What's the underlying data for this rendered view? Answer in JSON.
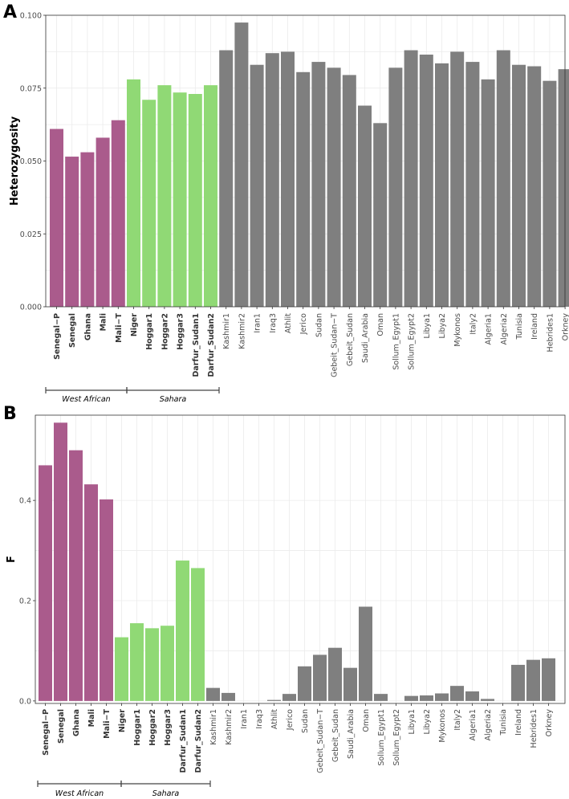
{
  "colors": {
    "west_african": "#aa5b8c",
    "sahara": "#90d975",
    "other": "#7f7f7f",
    "grid": "#ebebeb"
  },
  "chart_data": [
    {
      "type": "bar",
      "panel_letter": "A",
      "title": "",
      "xlabel": "",
      "ylabel": "Heterozygosity",
      "ylim": [
        0,
        0.1
      ],
      "yticks": [
        0,
        0.025,
        0.05,
        0.075,
        0.1
      ],
      "ytick_labels": [
        "0.000",
        "0.025",
        "0.050",
        "0.075",
        "0.100"
      ],
      "grid": true,
      "categories": [
        "Senegal−P",
        "Senegal",
        "Ghana",
        "Mali",
        "Mali−T",
        "Niger",
        "Hoggar1",
        "Hoggar2",
        "Hoggar3",
        "Darfur_Sudan1",
        "Darfur_Sudan2",
        "Kashmir1",
        "Kashmir2",
        "Iran1",
        "Iraq3",
        "Athlit",
        "Jerico",
        "Sudan",
        "Gebeit_Sudan−T",
        "Gebeit_Sudan",
        "Saudi_Arabia",
        "Oman",
        "Sollum_Egypt1",
        "Sollum_Egypt2",
        "Libya1",
        "Libya2",
        "Mykonos",
        "Italy2",
        "Algeria1",
        "Algeria2",
        "Tunisia",
        "Ireland",
        "Hebrides1",
        "Orkney"
      ],
      "values": [
        0.061,
        0.0515,
        0.053,
        0.058,
        0.064,
        0.078,
        0.071,
        0.076,
        0.0735,
        0.073,
        0.076,
        0.088,
        0.0975,
        0.083,
        0.087,
        0.0875,
        0.0805,
        0.084,
        0.082,
        0.0795,
        0.069,
        0.063,
        0.082,
        0.088,
        0.0865,
        0.0835,
        0.0875,
        0.084,
        0.078,
        0.088,
        0.083,
        0.0825,
        0.0775,
        0.0815
      ],
      "groups": [
        {
          "name": "West African",
          "start": 0,
          "end": 4,
          "color_key": "west_african"
        },
        {
          "name": "Sahara",
          "start": 5,
          "end": 10,
          "color_key": "sahara"
        },
        {
          "name": "",
          "start": 11,
          "end": 33,
          "color_key": "other"
        }
      ]
    },
    {
      "type": "bar",
      "panel_letter": "B",
      "title": "",
      "xlabel": "",
      "ylabel": "F",
      "ylim": [
        -0.005,
        0.57
      ],
      "yticks": [
        0,
        0.2,
        0.4
      ],
      "ytick_labels": [
        "0.0",
        "0.2",
        "0.4"
      ],
      "grid": true,
      "categories": [
        "Senegal−P",
        "Senegal",
        "Ghana",
        "Mali",
        "Mali−T",
        "Niger",
        "Hoggar1",
        "Hoggar2",
        "Hoggar3",
        "Darfur_Sudan1",
        "Darfur_Sudan2",
        "Kashmir1",
        "Kashmir2",
        "Iran1",
        "Iraq3",
        "Athlit",
        "Jerico",
        "Sudan",
        "Gebeit_Sudan−T",
        "Gebeit_Sudan",
        "Saudi_Arabia",
        "Oman",
        "Sollum_Egypt1",
        "Sollum_Egypt2",
        "Libya1",
        "Libya2",
        "Mykonos",
        "Italy2",
        "Algeria1",
        "Algeria2",
        "Tunisia",
        "Ireland",
        "Hebrides1",
        "Orkney"
      ],
      "values": [
        0.47,
        0.555,
        0.5,
        0.432,
        0.402,
        0.127,
        0.155,
        0.145,
        0.15,
        0.28,
        0.265,
        0.026,
        0.016,
        0,
        0,
        0.002,
        0.014,
        0.069,
        0.092,
        0.106,
        0.066,
        0.188,
        0.014,
        0,
        0.01,
        0.011,
        0.015,
        0.03,
        0.019,
        0.004,
        0,
        0.072,
        0.082,
        0.085
      ],
      "groups": [
        {
          "name": "West African",
          "start": 0,
          "end": 4,
          "color_key": "west_african"
        },
        {
          "name": "Sahara",
          "start": 5,
          "end": 10,
          "color_key": "sahara"
        },
        {
          "name": "",
          "start": 11,
          "end": 33,
          "color_key": "other"
        }
      ]
    }
  ]
}
